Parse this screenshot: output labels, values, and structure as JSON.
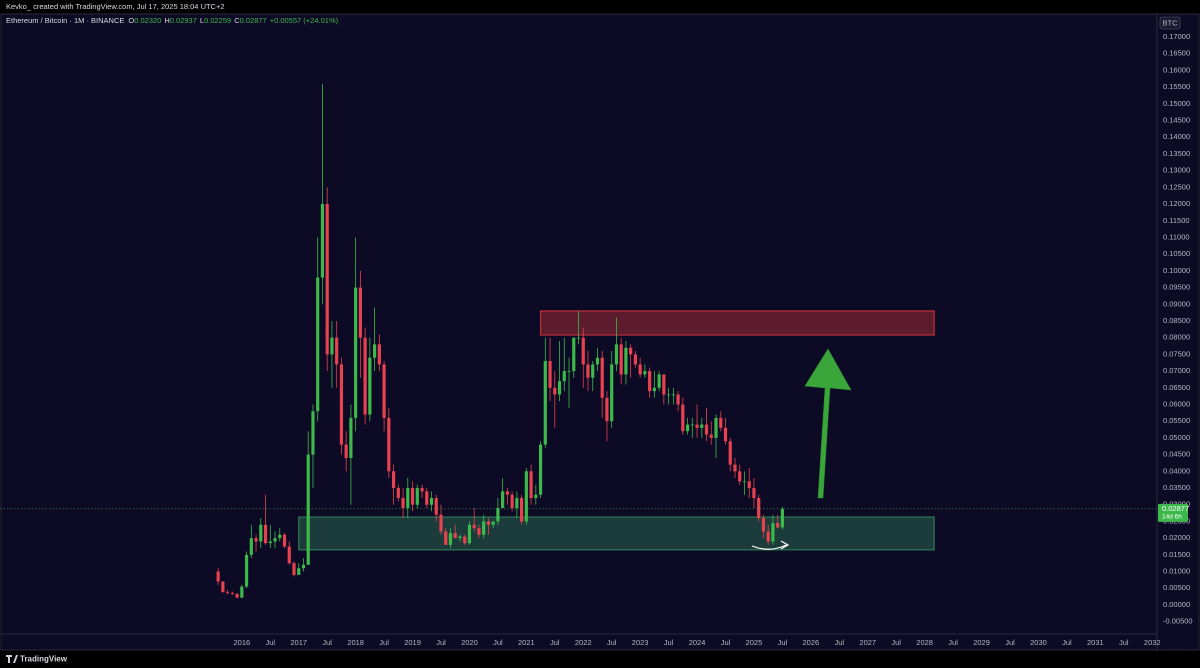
{
  "chart_data": {
    "type": "candlestick",
    "author_line": "Kevko_ created with TradingView.com, Jul 17, 2025 18:04 UTC+2",
    "symbol": "Ethereum / Bitcoin · 1M · BINANCE",
    "ohlc_fields": [
      {
        "key": "O",
        "text": "0.02320"
      },
      {
        "key": "H",
        "text": "0.02937"
      },
      {
        "key": "L",
        "text": "0.02259"
      },
      {
        "key": "C",
        "text": "0.02877"
      }
    ],
    "change_text": "+0.00557 (+24.01%)",
    "unit": "BTC",
    "last_price_label": "0.02877",
    "countdown": "14d 6h",
    "brand": "TradingView",
    "up_color": "#3cb94a",
    "down_color": "#e8414f",
    "grid": false,
    "xlim": [
      "2011-10",
      "2032-02"
    ],
    "ylim": [
      -0.0081,
      0.1751
    ],
    "x": [
      "2015-08",
      "2015-09",
      "2015-10",
      "2015-11",
      "2015-12",
      "2016-01",
      "2016-02",
      "2016-03",
      "2016-04",
      "2016-05",
      "2016-06",
      "2016-07",
      "2016-08",
      "2016-09",
      "2016-10",
      "2016-11",
      "2016-12",
      "2017-01",
      "2017-02",
      "2017-03",
      "2017-04",
      "2017-05",
      "2017-06",
      "2017-07",
      "2017-08",
      "2017-09",
      "2017-10",
      "2017-11",
      "2017-12",
      "2018-01",
      "2018-02",
      "2018-03",
      "2018-04",
      "2018-05",
      "2018-06",
      "2018-07",
      "2018-08",
      "2018-09",
      "2018-10",
      "2018-11",
      "2018-12",
      "2019-01",
      "2019-02",
      "2019-03",
      "2019-04",
      "2019-05",
      "2019-06",
      "2019-07",
      "2019-08",
      "2019-09",
      "2019-10",
      "2019-11",
      "2019-12",
      "2020-01",
      "2020-02",
      "2020-03",
      "2020-04",
      "2020-05",
      "2020-06",
      "2020-07",
      "2020-08",
      "2020-09",
      "2020-10",
      "2020-11",
      "2020-12",
      "2021-01",
      "2021-02",
      "2021-03",
      "2021-04",
      "2021-05",
      "2021-06",
      "2021-07",
      "2021-08",
      "2021-09",
      "2021-10",
      "2021-11",
      "2021-12",
      "2022-01",
      "2022-02",
      "2022-03",
      "2022-04",
      "2022-05",
      "2022-06",
      "2022-07",
      "2022-08",
      "2022-09",
      "2022-10",
      "2022-11",
      "2022-12",
      "2023-01",
      "2023-02",
      "2023-03",
      "2023-04",
      "2023-05",
      "2023-06",
      "2023-07",
      "2023-08",
      "2023-09",
      "2023-10",
      "2023-11",
      "2023-12",
      "2024-01",
      "2024-02",
      "2024-03",
      "2024-04",
      "2024-05",
      "2024-06",
      "2024-07",
      "2024-08",
      "2024-09",
      "2024-10",
      "2024-11",
      "2024-12",
      "2025-01",
      "2025-02",
      "2025-03",
      "2025-04",
      "2025-05",
      "2025-06",
      "2025-07"
    ],
    "ohlc": [
      [
        0.01,
        0.011,
        0.006,
        0.007
      ],
      [
        0.007,
        0.0072,
        0.0038,
        0.0038
      ],
      [
        0.0038,
        0.0045,
        0.0032,
        0.0036
      ],
      [
        0.0036,
        0.004,
        0.003,
        0.0033
      ],
      [
        0.0033,
        0.0035,
        0.002,
        0.0022
      ],
      [
        0.0022,
        0.006,
        0.002,
        0.0055
      ],
      [
        0.0055,
        0.016,
        0.005,
        0.015
      ],
      [
        0.015,
        0.024,
        0.014,
        0.02
      ],
      [
        0.02,
        0.021,
        0.016,
        0.019
      ],
      [
        0.019,
        0.026,
        0.017,
        0.024
      ],
      [
        0.024,
        0.033,
        0.018,
        0.0185
      ],
      [
        0.0185,
        0.024,
        0.017,
        0.019
      ],
      [
        0.019,
        0.022,
        0.017,
        0.02
      ],
      [
        0.02,
        0.023,
        0.019,
        0.021
      ],
      [
        0.021,
        0.0215,
        0.017,
        0.0175
      ],
      [
        0.0175,
        0.019,
        0.012,
        0.0125
      ],
      [
        0.0125,
        0.013,
        0.0085,
        0.009
      ],
      [
        0.009,
        0.0125,
        0.009,
        0.011
      ],
      [
        0.011,
        0.014,
        0.01,
        0.012
      ],
      [
        0.012,
        0.052,
        0.012,
        0.045
      ],
      [
        0.045,
        0.06,
        0.035,
        0.058
      ],
      [
        0.058,
        0.11,
        0.055,
        0.098
      ],
      [
        0.098,
        0.156,
        0.09,
        0.12
      ],
      [
        0.12,
        0.125,
        0.07,
        0.075
      ],
      [
        0.075,
        0.085,
        0.065,
        0.08
      ],
      [
        0.08,
        0.085,
        0.065,
        0.072
      ],
      [
        0.072,
        0.074,
        0.045,
        0.048
      ],
      [
        0.048,
        0.052,
        0.04,
        0.044
      ],
      [
        0.044,
        0.06,
        0.03,
        0.056
      ],
      [
        0.056,
        0.11,
        0.052,
        0.095
      ],
      [
        0.095,
        0.1,
        0.068,
        0.08
      ],
      [
        0.08,
        0.083,
        0.054,
        0.057
      ],
      [
        0.057,
        0.08,
        0.055,
        0.074
      ],
      [
        0.074,
        0.089,
        0.07,
        0.078
      ],
      [
        0.078,
        0.081,
        0.07,
        0.072
      ],
      [
        0.072,
        0.073,
        0.052,
        0.056
      ],
      [
        0.056,
        0.059,
        0.038,
        0.04
      ],
      [
        0.04,
        0.042,
        0.03,
        0.035
      ],
      [
        0.035,
        0.036,
        0.031,
        0.032
      ],
      [
        0.032,
        0.035,
        0.026,
        0.029
      ],
      [
        0.029,
        0.038,
        0.026,
        0.035
      ],
      [
        0.035,
        0.037,
        0.028,
        0.03
      ],
      [
        0.03,
        0.036,
        0.029,
        0.035
      ],
      [
        0.035,
        0.036,
        0.032,
        0.034
      ],
      [
        0.034,
        0.035,
        0.029,
        0.03
      ],
      [
        0.03,
        0.034,
        0.028,
        0.032
      ],
      [
        0.032,
        0.033,
        0.025,
        0.027
      ],
      [
        0.027,
        0.03,
        0.021,
        0.022
      ],
      [
        0.022,
        0.023,
        0.018,
        0.018
      ],
      [
        0.018,
        0.023,
        0.017,
        0.0215
      ],
      [
        0.0215,
        0.024,
        0.02,
        0.02
      ],
      [
        0.02,
        0.021,
        0.019,
        0.0205
      ],
      [
        0.0205,
        0.021,
        0.018,
        0.0185
      ],
      [
        0.0185,
        0.025,
        0.018,
        0.024
      ],
      [
        0.024,
        0.029,
        0.022,
        0.023
      ],
      [
        0.023,
        0.024,
        0.02,
        0.021
      ],
      [
        0.021,
        0.027,
        0.02,
        0.025
      ],
      [
        0.025,
        0.026,
        0.021,
        0.024
      ],
      [
        0.024,
        0.025,
        0.023,
        0.025
      ],
      [
        0.025,
        0.032,
        0.024,
        0.029
      ],
      [
        0.029,
        0.038,
        0.029,
        0.034
      ],
      [
        0.034,
        0.035,
        0.03,
        0.033
      ],
      [
        0.033,
        0.034,
        0.028,
        0.029
      ],
      [
        0.029,
        0.034,
        0.026,
        0.032
      ],
      [
        0.032,
        0.033,
        0.024,
        0.025
      ],
      [
        0.025,
        0.041,
        0.024,
        0.04
      ],
      [
        0.04,
        0.042,
        0.03,
        0.032
      ],
      [
        0.032,
        0.036,
        0.03,
        0.033
      ],
      [
        0.033,
        0.049,
        0.032,
        0.048
      ],
      [
        0.048,
        0.08,
        0.047,
        0.073
      ],
      [
        0.073,
        0.08,
        0.061,
        0.065
      ],
      [
        0.065,
        0.07,
        0.053,
        0.063
      ],
      [
        0.063,
        0.079,
        0.061,
        0.067
      ],
      [
        0.067,
        0.08,
        0.064,
        0.07
      ],
      [
        0.07,
        0.074,
        0.059,
        0.07
      ],
      [
        0.07,
        0.079,
        0.068,
        0.08
      ],
      [
        0.08,
        0.088,
        0.078,
        0.08
      ],
      [
        0.08,
        0.083,
        0.065,
        0.072
      ],
      [
        0.072,
        0.076,
        0.064,
        0.068
      ],
      [
        0.068,
        0.073,
        0.064,
        0.072
      ],
      [
        0.072,
        0.077,
        0.07,
        0.074
      ],
      [
        0.074,
        0.076,
        0.056,
        0.062
      ],
      [
        0.062,
        0.064,
        0.049,
        0.055
      ],
      [
        0.055,
        0.076,
        0.053,
        0.072
      ],
      [
        0.072,
        0.086,
        0.07,
        0.078
      ],
      [
        0.078,
        0.08,
        0.066,
        0.069
      ],
      [
        0.069,
        0.079,
        0.066,
        0.077
      ],
      [
        0.077,
        0.078,
        0.068,
        0.075
      ],
      [
        0.075,
        0.076,
        0.071,
        0.072
      ],
      [
        0.072,
        0.074,
        0.068,
        0.069
      ],
      [
        0.069,
        0.072,
        0.068,
        0.07
      ],
      [
        0.07,
        0.071,
        0.062,
        0.064
      ],
      [
        0.064,
        0.07,
        0.062,
        0.065
      ],
      [
        0.065,
        0.07,
        0.064,
        0.069
      ],
      [
        0.069,
        0.069,
        0.06,
        0.063
      ],
      [
        0.063,
        0.065,
        0.06,
        0.063
      ],
      [
        0.063,
        0.065,
        0.06,
        0.063
      ],
      [
        0.063,
        0.064,
        0.058,
        0.06
      ],
      [
        0.06,
        0.062,
        0.051,
        0.052
      ],
      [
        0.052,
        0.056,
        0.051,
        0.054
      ],
      [
        0.054,
        0.056,
        0.05,
        0.054
      ],
      [
        0.054,
        0.06,
        0.05,
        0.053
      ],
      [
        0.053,
        0.056,
        0.05,
        0.054
      ],
      [
        0.054,
        0.059,
        0.049,
        0.051
      ],
      [
        0.051,
        0.055,
        0.048,
        0.05
      ],
      [
        0.05,
        0.057,
        0.044,
        0.056
      ],
      [
        0.056,
        0.058,
        0.052,
        0.053
      ],
      [
        0.053,
        0.056,
        0.048,
        0.049
      ],
      [
        0.049,
        0.05,
        0.04,
        0.042
      ],
      [
        0.042,
        0.044,
        0.038,
        0.04
      ],
      [
        0.04,
        0.042,
        0.036,
        0.037
      ],
      [
        0.037,
        0.04,
        0.033,
        0.037
      ],
      [
        0.037,
        0.041,
        0.032,
        0.035
      ],
      [
        0.035,
        0.038,
        0.029,
        0.032
      ],
      [
        0.032,
        0.033,
        0.025,
        0.026
      ],
      [
        0.026,
        0.027,
        0.02,
        0.022
      ],
      [
        0.022,
        0.024,
        0.018,
        0.019
      ],
      [
        0.019,
        0.027,
        0.018,
        0.0245
      ],
      [
        0.0245,
        0.027,
        0.023,
        0.0232
      ],
      [
        0.0232,
        0.02937,
        0.02259,
        0.02877
      ]
    ],
    "zones": [
      {
        "color": "#c0303a",
        "range": [
          0.0808,
          0.088
        ],
        "x": [
          "2021-04",
          "2028-03"
        ]
      },
      {
        "color": "#2f7a55",
        "range": [
          0.0165,
          0.0263
        ],
        "x": [
          "2017-01",
          "2028-03"
        ]
      }
    ],
    "xticks": [
      {
        "value": "2016-01",
        "label": "2016"
      },
      {
        "value": "2016-07",
        "label": "Jul"
      },
      {
        "value": "2017-01",
        "label": "2017"
      },
      {
        "value": "2017-07",
        "label": "Jul"
      },
      {
        "value": "2018-01",
        "label": "2018"
      },
      {
        "value": "2018-07",
        "label": "Jul"
      },
      {
        "value": "2019-01",
        "label": "2019"
      },
      {
        "value": "2019-07",
        "label": "Jul"
      },
      {
        "value": "2020-01",
        "label": "2020"
      },
      {
        "value": "2020-07",
        "label": "Jul"
      },
      {
        "value": "2021-01",
        "label": "2021"
      },
      {
        "value": "2021-07",
        "label": "Jul"
      },
      {
        "value": "2022-01",
        "label": "2022"
      },
      {
        "value": "2022-07",
        "label": "Jul"
      },
      {
        "value": "2023-01",
        "label": "2023"
      },
      {
        "value": "2023-07",
        "label": "Jul"
      },
      {
        "value": "2024-01",
        "label": "2024"
      },
      {
        "value": "2024-07",
        "label": "Jul"
      },
      {
        "value": "2025-01",
        "label": "2025"
      },
      {
        "value": "2025-07",
        "label": "Jul"
      },
      {
        "value": "2026-01",
        "label": "2026"
      },
      {
        "value": "2026-07",
        "label": "Jul"
      },
      {
        "value": "2027-01",
        "label": "2027"
      },
      {
        "value": "2027-07",
        "label": "Jul"
      },
      {
        "value": "2028-01",
        "label": "2028"
      },
      {
        "value": "2028-07",
        "label": "Jul"
      },
      {
        "value": "2029-01",
        "label": "2029"
      },
      {
        "value": "2029-07",
        "label": "Jul"
      },
      {
        "value": "2030-01",
        "label": "2030"
      },
      {
        "value": "2030-07",
        "label": "Jul"
      },
      {
        "value": "2031-01",
        "label": "2031"
      },
      {
        "value": "2031-07",
        "label": "Jul"
      },
      {
        "value": "2032-01",
        "label": "2032"
      }
    ],
    "yticks": [
      {
        "value": 0.17,
        "label": "0.17000"
      },
      {
        "value": 0.165,
        "label": "0.16500"
      },
      {
        "value": 0.16,
        "label": "0.16000"
      },
      {
        "value": 0.155,
        "label": "0.15500"
      },
      {
        "value": 0.15,
        "label": "0.15000"
      },
      {
        "value": 0.145,
        "label": "0.14500"
      },
      {
        "value": 0.14,
        "label": "0.14000"
      },
      {
        "value": 0.135,
        "label": "0.13500"
      },
      {
        "value": 0.13,
        "label": "0.13000"
      },
      {
        "value": 0.125,
        "label": "0.12500"
      },
      {
        "value": 0.12,
        "label": "0.12000"
      },
      {
        "value": 0.115,
        "label": "0.11500"
      },
      {
        "value": 0.11,
        "label": "0.11000"
      },
      {
        "value": 0.105,
        "label": "0.10500"
      },
      {
        "value": 0.1,
        "label": "0.10000"
      },
      {
        "value": 0.095,
        "label": "0.09500"
      },
      {
        "value": 0.09,
        "label": "0.09000"
      },
      {
        "value": 0.085,
        "label": "0.08500"
      },
      {
        "value": 0.08,
        "label": "0.08000"
      },
      {
        "value": 0.075,
        "label": "0.07500"
      },
      {
        "value": 0.07,
        "label": "0.07000"
      },
      {
        "value": 0.065,
        "label": "0.06500"
      },
      {
        "value": 0.06,
        "label": "0.06000"
      },
      {
        "value": 0.055,
        "label": "0.05500"
      },
      {
        "value": 0.05,
        "label": "0.05000"
      },
      {
        "value": 0.045,
        "label": "0.04500"
      },
      {
        "value": 0.04,
        "label": "0.04000"
      },
      {
        "value": 0.035,
        "label": "0.03500"
      },
      {
        "value": 0.03,
        "label": "0.03000"
      },
      {
        "value": 0.025,
        "label": "0.02500"
      },
      {
        "value": 0.02,
        "label": "0.02000"
      },
      {
        "value": 0.015,
        "label": "0.01500"
      },
      {
        "value": 0.01,
        "label": "0.01000"
      },
      {
        "value": 0.005,
        "label": "0.00500"
      },
      {
        "value": 0,
        "label": "0.00000"
      },
      {
        "value": -0.005,
        "label": "-0.00500"
      }
    ]
  }
}
